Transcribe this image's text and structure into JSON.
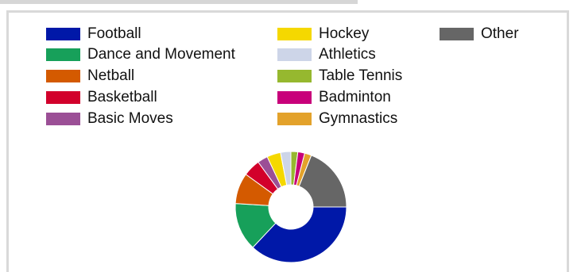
{
  "chart_data": {
    "type": "pie",
    "donut": true,
    "legend_position": "top",
    "series": [
      {
        "name": "Football",
        "value": 37,
        "color": "#0018a8"
      },
      {
        "name": "Dance and Movement",
        "value": 14,
        "color": "#17a05a"
      },
      {
        "name": "Netball",
        "value": 9,
        "color": "#d45a00"
      },
      {
        "name": "Basketball",
        "value": 5,
        "color": "#d2002b"
      },
      {
        "name": "Basic Moves",
        "value": 3,
        "color": "#9b4f96"
      },
      {
        "name": "Hockey",
        "value": 4,
        "color": "#f5d800"
      },
      {
        "name": "Athletics",
        "value": 3,
        "color": "#cdd5e8"
      },
      {
        "name": "Table Tennis",
        "value": 2,
        "color": "#96b82f"
      },
      {
        "name": "Badminton",
        "value": 2,
        "color": "#c8007a"
      },
      {
        "name": "Gymnastics",
        "value": 2,
        "color": "#e3a22b"
      },
      {
        "name": "Other",
        "value": 19,
        "color": "#666666"
      }
    ]
  }
}
